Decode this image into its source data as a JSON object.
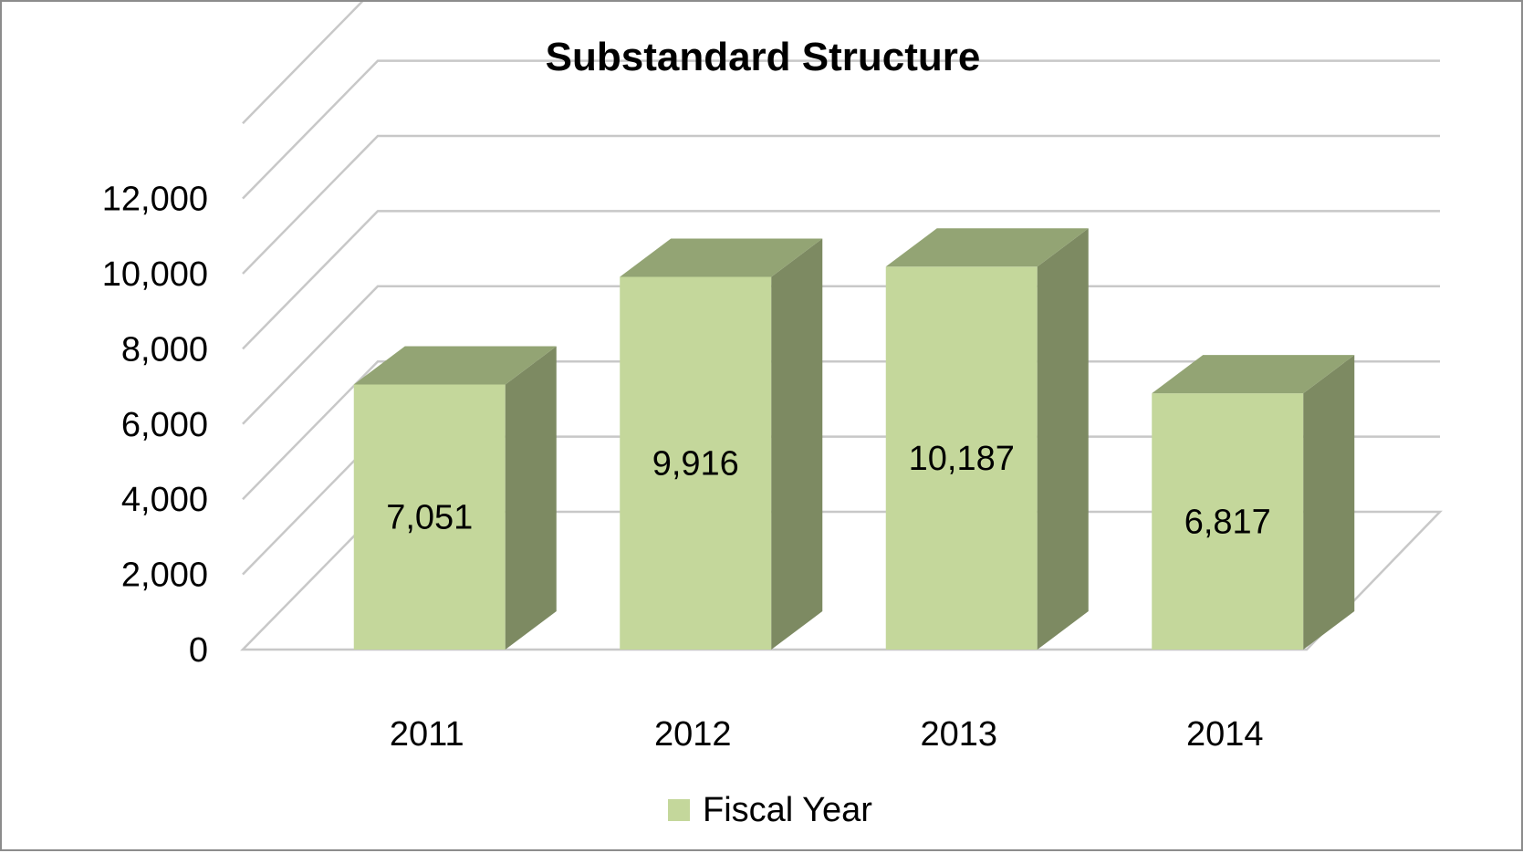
{
  "chart_data": {
    "type": "bar",
    "title": "Substandard Structure",
    "categories": [
      "2011",
      "2012",
      "2013",
      "2014"
    ],
    "series": [
      {
        "name": "Fiscal Year",
        "values": [
          7051,
          9916,
          10187,
          6817
        ],
        "value_labels": [
          "7,051",
          "9,916",
          "10,187",
          "6,817"
        ]
      }
    ],
    "y_ticks": [
      "0",
      "2,000",
      "4,000",
      "6,000",
      "8,000",
      "10,000",
      "12,000"
    ],
    "ylim": [
      0,
      14000
    ],
    "grid": true,
    "style": "3d-column",
    "legend_position": "bottom",
    "colors": {
      "front": "#c4d79b",
      "side": "#7d8a62",
      "top": "#93a474",
      "grid": "#c8c8c8",
      "frame": "#8c8c8c"
    }
  }
}
